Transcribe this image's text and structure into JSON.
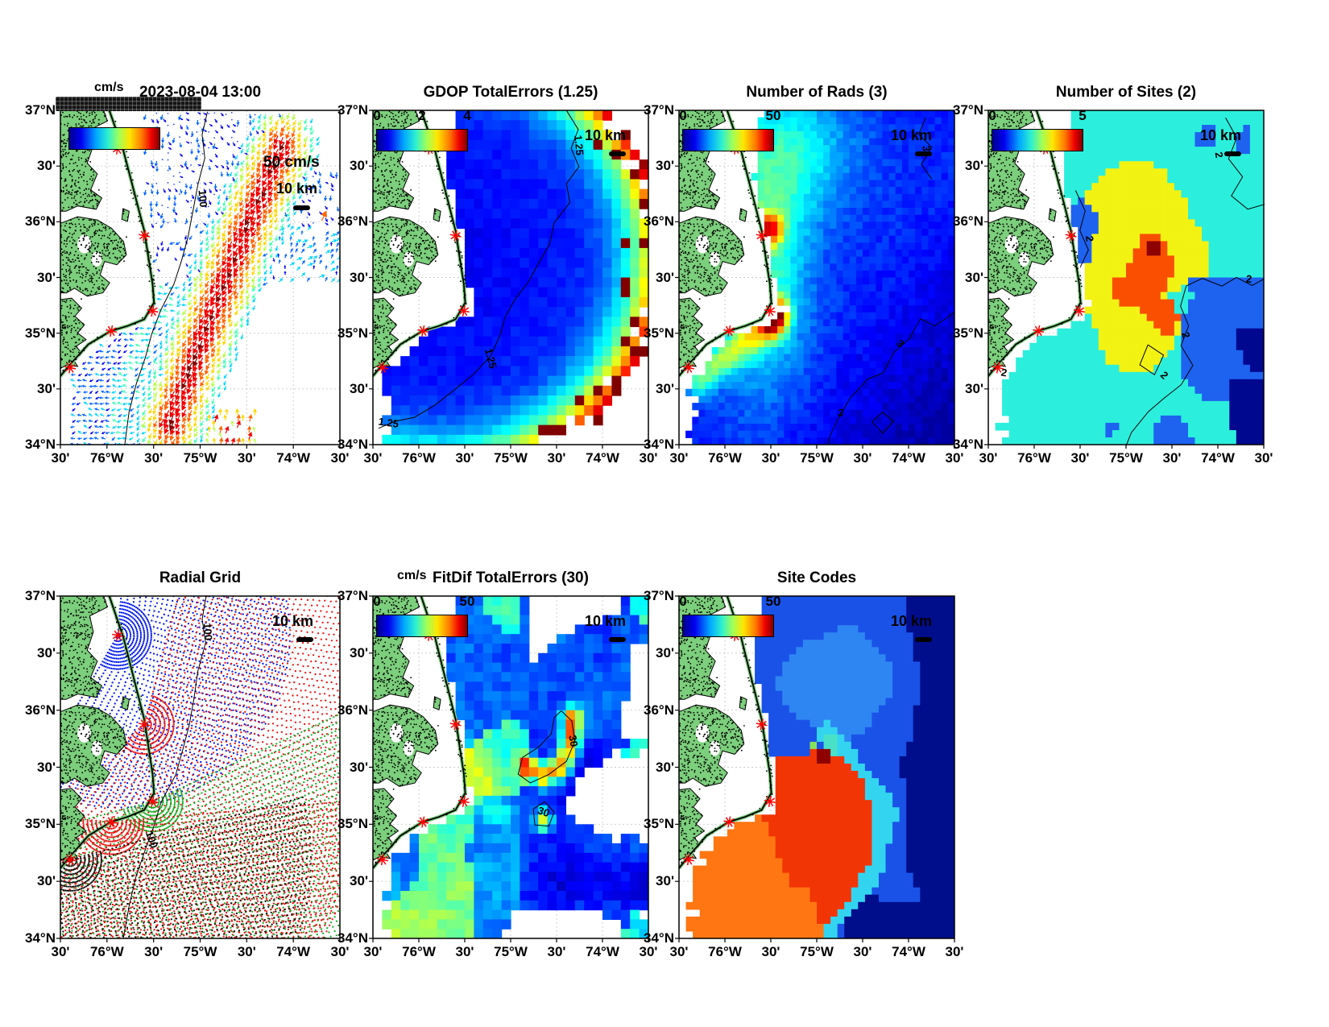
{
  "axis": {
    "lat_ticks": [
      "37°N",
      "30'",
      "36°N",
      "30'",
      "35°N",
      "30'",
      "34°N"
    ],
    "lon_ticks": [
      "30'",
      "76°W",
      "30'",
      "75°W",
      "30'",
      "74°W",
      "30'"
    ]
  },
  "colors": {
    "land": "#7CCF7C",
    "site_marker": "#FF0000",
    "jet": [
      "#00008F",
      "#0000FF",
      "#00FFFF",
      "#80FF80",
      "#FFFF00",
      "#FF8000",
      "#FF0000",
      "#800000"
    ]
  },
  "panels": [
    {
      "title": "2023-08-04 13:00",
      "cbar_units": "cm/s",
      "cbar_ticks": [],
      "vector_legend": "50 cm/s",
      "scale_label": "10 km",
      "contour_labels": [
        "100"
      ]
    },
    {
      "title": "GDOP TotalErrors (1.25)",
      "cbar_units": "",
      "cbar_ticks": [
        "0",
        "2",
        "4"
      ],
      "scale_label": "10 km",
      "contour_labels": [
        "1.25",
        "1.25",
        "1.25"
      ]
    },
    {
      "title": "Number of Rads (3)",
      "cbar_units": "",
      "cbar_ticks": [
        "0",
        "50"
      ],
      "scale_label": "10 km",
      "contour_labels": [
        "3",
        "3",
        "3"
      ]
    },
    {
      "title": "Number of Sites (2)",
      "cbar_units": "",
      "cbar_ticks": [
        "0",
        "5"
      ],
      "scale_label": "10 km",
      "contour_labels": [
        "2",
        "2",
        "2",
        "2",
        "2",
        "2"
      ]
    },
    {
      "title": "Radial Grid",
      "cbar_units": "",
      "cbar_ticks": [],
      "scale_label": "10 km",
      "contour_labels": [
        "100",
        "100"
      ]
    },
    {
      "title": "FitDif TotalErrors (30)",
      "cbar_units": "cm/s",
      "cbar_ticks": [
        "0",
        "50"
      ],
      "scale_label": "10 km",
      "contour_labels": [
        "30",
        "30"
      ]
    },
    {
      "title": "Site Codes",
      "cbar_units": "",
      "cbar_ticks": [
        "0",
        "50"
      ],
      "scale_label": "10 km",
      "contour_labels": []
    }
  ],
  "chart_data": [
    {
      "panel": "surface_currents",
      "type": "scatter",
      "title": "2023-08-04 13:00",
      "units": "cm/s",
      "lat_range": [
        34,
        37
      ],
      "lon_range": [
        -76.5,
        -73.5
      ],
      "vector_scale_cm_s": 50,
      "scale_bar_km": 10,
      "colorbar_range": [
        0,
        50
      ],
      "bathymetry_contour_m": 100,
      "description": "Current vector field: weak blue vectors (5-15 cm/s) over the shelf and near the coast, strong dark-red Gulf Stream jet (40-50 cm/s) flowing northeast from about (35.0N,-75.2) to (36.6N,-74.1)",
      "sites_lat_lon": [
        [
          36.65,
          -75.89
        ],
        [
          35.87,
          -75.6
        ],
        [
          35.2,
          -75.51
        ],
        [
          35.02,
          -75.95
        ],
        [
          34.69,
          -76.4
        ]
      ]
    },
    {
      "panel": "gdop_total_errors",
      "type": "heatmap",
      "title": "GDOP TotalErrors (1.25)",
      "lat_range": [
        34,
        37
      ],
      "lon_range": [
        -76.5,
        -73.5
      ],
      "colorbar_ticks": [
        0,
        2,
        4
      ],
      "colorbar_range": [
        0,
        4
      ],
      "contour_level": 1.25,
      "scale_bar_km": 10,
      "description": "GDOP 0.5-1.2 (blue) over core coverage, rising through cyan/green/yellow to 3-4 (red) at the outer coverage rim; 1.25 contour rings the usable area"
    },
    {
      "panel": "number_of_rads",
      "type": "heatmap",
      "title": "Number of Rads (3)",
      "lat_range": [
        34,
        37
      ],
      "lon_range": [
        -76.5,
        -73.5
      ],
      "colorbar_ticks": [
        0,
        50
      ],
      "colorbar_range": [
        0,
        50
      ],
      "contour_level": 3,
      "scale_bar_km": 10,
      "description": "Radial solution counts: maxima ~45-50 (orange/red) just offshore of sites near 35.9N and 35.3N, cyan plume 15-25 mid-shelf, decreasing to <5 (dark navy) in the far southeast where the 3-count contour lies"
    },
    {
      "panel": "number_of_sites",
      "type": "heatmap",
      "title": "Number of Sites (2)",
      "lat_range": [
        34,
        37
      ],
      "lon_range": [
        -76.5,
        -73.5
      ],
      "colorbar_ticks": [
        0,
        5
      ],
      "colorbar_range": [
        0,
        5
      ],
      "contour_level": 2,
      "scale_bar_km": 10,
      "value_colors": {
        "1": "blue",
        "2": "cyan",
        "3": "yellow",
        "4": "orange-red",
        "5": "dark-red"
      },
      "description": "Discrete site-count map: cyan (2 sites) background, yellow (3) central blob, orange-red (4) core near 35.5N -74.8, single dark-red (5) cell, blue (1) patches east and southeast, dark navy lowest in far southeast; 2-count contours outline the regions"
    },
    {
      "panel": "radial_grid",
      "type": "scatter",
      "title": "Radial Grid",
      "lat_range": [
        34,
        37
      ],
      "lon_range": [
        -76.5,
        -73.5
      ],
      "scale_bar_km": 10,
      "bathymetry_contour_m": 100,
      "site_ring_colors": [
        "blue",
        "red",
        "green",
        "red",
        "black"
      ],
      "description": "Polar measurement grids of dots (range rings x bearings) radiating seaward from the five radar sites; ring colors by site from north to south: blue, red, green, red, black",
      "sites_lat_lon": [
        [
          36.65,
          -75.89
        ],
        [
          35.87,
          -75.6
        ],
        [
          35.2,
          -75.51
        ],
        [
          35.02,
          -75.95
        ],
        [
          34.69,
          -76.4
        ]
      ]
    },
    {
      "panel": "fitdif_total_errors",
      "type": "heatmap",
      "title": "FitDif TotalErrors (30)",
      "units": "cm/s",
      "lat_range": [
        34,
        37
      ],
      "lon_range": [
        -76.5,
        -73.5
      ],
      "colorbar_ticks": [
        0,
        50
      ],
      "colorbar_range": [
        0,
        50
      ],
      "contour_level": 30,
      "scale_bar_km": 10,
      "description": "Fit-difference errors mostly 5-20 cm/s (blue/cyan); curved yellow-orange arc of 30-40 cm/s near 35.55N -74.55 enclosed by the 30 cm/s contour, plus a small secondary 30 patch to its south"
    },
    {
      "panel": "site_codes",
      "type": "heatmap",
      "title": "Site Codes",
      "lat_range": [
        34,
        37
      ],
      "lon_range": [
        -76.5,
        -73.5
      ],
      "colorbar_ticks": [
        0,
        50
      ],
      "colorbar_range": [
        0,
        50
      ],
      "scale_bar_km": 10,
      "description": "Site-combination code regions: medium blue north with lighter blue patch, dark navy east and southeast, large red region center-south, orange southwest wedge, cyan boundary band between red and blue, isolated dark-red and green cells near 35.5N -75.0"
    }
  ]
}
